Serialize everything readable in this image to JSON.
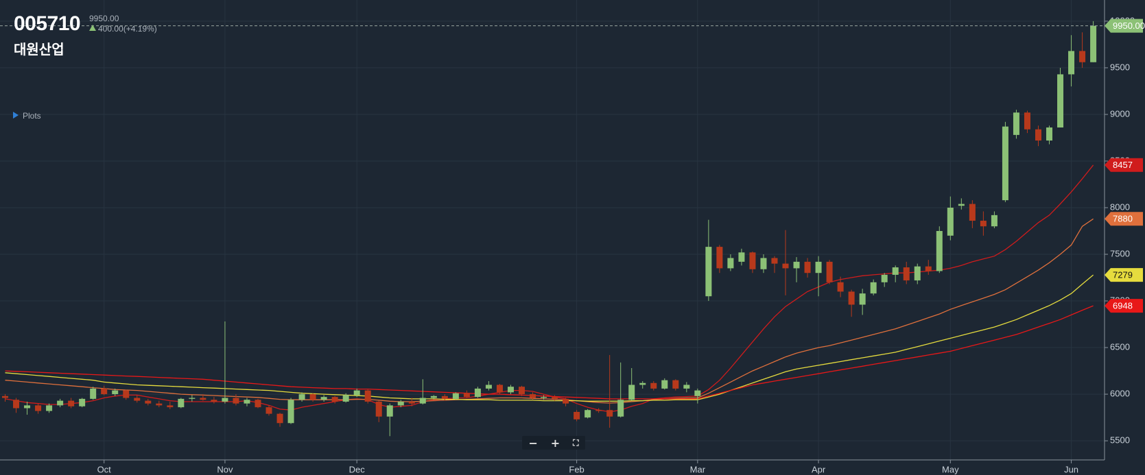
{
  "header": {
    "code": "005710",
    "name": "대원산업",
    "last": "9950.00",
    "change": "400.00(+4.19%)",
    "plots": "Plots"
  },
  "chart_data": {
    "type": "candlestick",
    "categories": [
      null,
      null,
      null,
      null,
      null,
      null,
      null,
      null,
      null,
      "Oct",
      null,
      null,
      null,
      null,
      null,
      null,
      null,
      null,
      null,
      null,
      "Nov",
      null,
      null,
      null,
      null,
      null,
      null,
      null,
      null,
      null,
      null,
      null,
      "Dec",
      null,
      null,
      null,
      null,
      null,
      null,
      null,
      null,
      null,
      null,
      null,
      null,
      null,
      null,
      null,
      null,
      null,
      null,
      null,
      "Feb",
      null,
      null,
      null,
      null,
      null,
      null,
      null,
      null,
      null,
      null,
      "Mar",
      null,
      null,
      null,
      null,
      null,
      null,
      null,
      null,
      null,
      null,
      "Apr",
      null,
      null,
      null,
      null,
      null,
      null,
      null,
      null,
      null,
      null,
      null,
      "May",
      null,
      null,
      null,
      null,
      null,
      null,
      null,
      null,
      null,
      null,
      "Jun",
      null,
      null
    ],
    "open": [
      5980,
      5940,
      5850,
      5880,
      5820,
      5880,
      5930,
      5870,
      5950,
      6060,
      6000,
      6040,
      5960,
      5930,
      5900,
      5880,
      5860,
      5950,
      5960,
      5940,
      5920,
      5960,
      5900,
      5940,
      5860,
      5790,
      5690,
      5940,
      6000,
      5940,
      5970,
      5920,
      5990,
      6040,
      5920,
      5760,
      5880,
      5920,
      5900,
      5960,
      5980,
      5950,
      6010,
      5970,
      6060,
      6100,
      6020,
      6080,
      6000,
      5960,
      5970,
      5950,
      5810,
      5750,
      5830,
      5830,
      5760,
      5940,
      6100,
      6120,
      6060,
      6150,
      6060,
      5980,
      7050,
      7580,
      7350,
      7420,
      7520,
      7340,
      7460,
      7400,
      7350,
      7420,
      7300,
      7420,
      7200,
      7100,
      6960,
      7080,
      7200,
      7280,
      7360,
      7220,
      7370,
      7320,
      7700,
      8020,
      8040,
      7860,
      7800,
      8080,
      8780,
      9020,
      8840,
      8720,
      8860,
      9430,
      9680,
      9560
    ],
    "high": [
      6000,
      5960,
      5920,
      5900,
      5900,
      5950,
      5960,
      5960,
      6080,
      6090,
      6060,
      6050,
      5990,
      5950,
      5930,
      5920,
      5960,
      5990,
      6000,
      5970,
      6780,
      6000,
      5960,
      5950,
      5880,
      5800,
      5960,
      6020,
      6010,
      5990,
      5980,
      6010,
      6060,
      6050,
      5930,
      5900,
      5940,
      5960,
      6160,
      5990,
      6000,
      6020,
      6040,
      6080,
      6140,
      6110,
      6100,
      6090,
      6020,
      5990,
      5990,
      5960,
      5830,
      5840,
      5850,
      6420,
      6340,
      6280,
      6140,
      6140,
      6170,
      6160,
      6130,
      6060,
      7870,
      7600,
      7500,
      7560,
      7530,
      7500,
      7480,
      7760,
      7470,
      7460,
      7480,
      7440,
      7260,
      7120,
      7130,
      7230,
      7300,
      7380,
      7420,
      7400,
      7440,
      7800,
      8120,
      8100,
      8080,
      7960,
      7960,
      8920,
      9050,
      9040,
      8880,
      8880,
      9500,
      9850,
      9880,
      10000
    ],
    "low": [
      5920,
      5800,
      5780,
      5790,
      5800,
      5860,
      5850,
      5860,
      5940,
      5990,
      5980,
      5940,
      5910,
      5880,
      5860,
      5840,
      5850,
      5920,
      5930,
      5900,
      5900,
      5880,
      5870,
      5850,
      5770,
      5650,
      5680,
      5920,
      5920,
      5920,
      5900,
      5910,
      5970,
      5900,
      5700,
      5550,
      5860,
      5870,
      5890,
      5940,
      5930,
      5940,
      5960,
      5960,
      6040,
      6000,
      6000,
      5980,
      5940,
      5940,
      5930,
      5870,
      5710,
      5740,
      5800,
      5640,
      5750,
      5930,
      6060,
      6040,
      6050,
      6040,
      6020,
      5900,
      7000,
      7300,
      7320,
      7380,
      7300,
      7300,
      7300,
      7060,
      7200,
      7250,
      7050,
      7180,
      7040,
      6830,
      6850,
      7060,
      7150,
      7200,
      7180,
      7180,
      7280,
      7300,
      7650,
      7980,
      7780,
      7700,
      7780,
      8060,
      8740,
      8800,
      8660,
      8680,
      8860,
      9300,
      9500,
      9560
    ],
    "close": [
      5960,
      5850,
      5880,
      5820,
      5880,
      5930,
      5870,
      5950,
      6060,
      6000,
      6040,
      5960,
      5930,
      5900,
      5880,
      5860,
      5950,
      5960,
      5940,
      5920,
      5960,
      5900,
      5940,
      5860,
      5790,
      5690,
      5940,
      6000,
      5940,
      5970,
      5920,
      5990,
      6040,
      5920,
      5760,
      5880,
      5920,
      5900,
      5960,
      5980,
      5950,
      6010,
      5970,
      6060,
      6100,
      6020,
      6080,
      6000,
      5960,
      5970,
      5950,
      5900,
      5730,
      5830,
      5820,
      5760,
      5940,
      6100,
      6120,
      6060,
      6150,
      6060,
      6100,
      6040,
      7580,
      7350,
      7460,
      7520,
      7340,
      7460,
      7400,
      7350,
      7420,
      7300,
      7420,
      7200,
      7100,
      6960,
      7080,
      7200,
      7280,
      7360,
      7220,
      7370,
      7320,
      7750,
      8000,
      8040,
      7860,
      7800,
      7920,
      8870,
      9020,
      8840,
      8720,
      8860,
      9430,
      9680,
      9560,
      9950
    ],
    "up_color": "#8cc176",
    "down_color": "#b8391c",
    "doji_color": "#ffffff",
    "series": [
      {
        "color": "#d01c1c",
        "values": [
          5950,
          5930,
          5910,
          5900,
          5890,
          5890,
          5900,
          5910,
          5930,
          5960,
          5980,
          5990,
          5990,
          5970,
          5950,
          5930,
          5920,
          5920,
          5920,
          5920,
          5920,
          5920,
          5930,
          5910,
          5880,
          5840,
          5830,
          5860,
          5880,
          5900,
          5920,
          5940,
          5950,
          5940,
          5890,
          5860,
          5870,
          5880,
          5920,
          5940,
          5950,
          5960,
          5960,
          5980,
          6000,
          6020,
          6040,
          6040,
          6030,
          6000,
          5970,
          5950,
          5900,
          5860,
          5830,
          5810,
          5830,
          5870,
          5900,
          5950,
          5960,
          5970,
          5975,
          5980,
          6050,
          6150,
          6280,
          6420,
          6560,
          6700,
          6830,
          6940,
          7020,
          7100,
          7150,
          7200,
          7230,
          7250,
          7270,
          7280,
          7290,
          7300,
          7300,
          7310,
          7320,
          7330,
          7350,
          7380,
          7420,
          7450,
          7480,
          7550,
          7640,
          7740,
          7840,
          7920,
          8040,
          8170,
          8310,
          8457
        ]
      },
      {
        "color": "#e0703c",
        "values": [
          6150,
          6140,
          6130,
          6120,
          6110,
          6100,
          6090,
          6080,
          6070,
          6060,
          6050,
          6045,
          6040,
          6030,
          6020,
          6010,
          6000,
          5995,
          5990,
          5985,
          5980,
          5975,
          5970,
          5965,
          5955,
          5945,
          5940,
          5940,
          5940,
          5940,
          5940,
          5940,
          5945,
          5945,
          5935,
          5925,
          5920,
          5920,
          5925,
          5930,
          5935,
          5940,
          5945,
          5950,
          5955,
          5960,
          5960,
          5960,
          5955,
          5950,
          5945,
          5940,
          5930,
          5920,
          5910,
          5905,
          5910,
          5920,
          5930,
          5940,
          5950,
          5955,
          5960,
          5960,
          6010,
          6070,
          6130,
          6190,
          6250,
          6300,
          6350,
          6400,
          6440,
          6470,
          6500,
          6520,
          6550,
          6580,
          6610,
          6640,
          6670,
          6700,
          6740,
          6780,
          6820,
          6860,
          6910,
          6950,
          6990,
          7030,
          7070,
          7120,
          7190,
          7260,
          7330,
          7410,
          7500,
          7600,
          7800,
          7880
        ]
      },
      {
        "color": "#e6dc3e",
        "values": [
          6230,
          6220,
          6210,
          6200,
          6190,
          6180,
          6170,
          6160,
          6150,
          6130,
          6120,
          6110,
          6100,
          6095,
          6090,
          6085,
          6080,
          6075,
          6070,
          6065,
          6060,
          6055,
          6050,
          6045,
          6040,
          6030,
          6020,
          6010,
          6005,
          6000,
          5995,
          5990,
          5985,
          5980,
          5970,
          5960,
          5955,
          5950,
          5950,
          5950,
          5945,
          5945,
          5940,
          5940,
          5940,
          5935,
          5935,
          5935,
          5935,
          5930,
          5930,
          5930,
          5930,
          5925,
          5925,
          5925,
          5925,
          5930,
          5930,
          5935,
          5935,
          5940,
          5940,
          5940,
          5970,
          6000,
          6040,
          6080,
          6120,
          6160,
          6200,
          6240,
          6270,
          6290,
          6310,
          6330,
          6350,
          6370,
          6390,
          6410,
          6430,
          6450,
          6480,
          6510,
          6540,
          6570,
          6600,
          6630,
          6660,
          6690,
          6720,
          6760,
          6800,
          6850,
          6900,
          6950,
          7010,
          7080,
          7180,
          7279
        ]
      },
      {
        "color": "#e81818",
        "values": [
          6250,
          6245,
          6240,
          6235,
          6230,
          6225,
          6220,
          6215,
          6210,
          6205,
          6200,
          6195,
          6190,
          6185,
          6180,
          6175,
          6170,
          6165,
          6160,
          6150,
          6140,
          6130,
          6120,
          6110,
          6100,
          6090,
          6080,
          6075,
          6070,
          6065,
          6060,
          6060,
          6055,
          6055,
          6050,
          6045,
          6040,
          6035,
          6030,
          6025,
          6020,
          6015,
          6010,
          6005,
          6000,
          6000,
          5995,
          5990,
          5985,
          5980,
          5975,
          5970,
          5965,
          5960,
          5955,
          5950,
          5950,
          5950,
          5950,
          5950,
          5950,
          5950,
          5950,
          5950,
          5980,
          6010,
          6040,
          6070,
          6100,
          6120,
          6140,
          6160,
          6180,
          6200,
          6220,
          6240,
          6260,
          6280,
          6300,
          6320,
          6340,
          6360,
          6380,
          6400,
          6420,
          6440,
          6460,
          6490,
          6520,
          6550,
          6580,
          6610,
          6640,
          6680,
          6720,
          6760,
          6800,
          6850,
          6900,
          6948
        ]
      }
    ],
    "ylim": [
      5295,
      10227
    ],
    "yticks": [
      5500,
      6000,
      6500,
      7000,
      7500,
      8000,
      8500,
      9000,
      9500,
      10000
    ],
    "grid": true
  }
}
